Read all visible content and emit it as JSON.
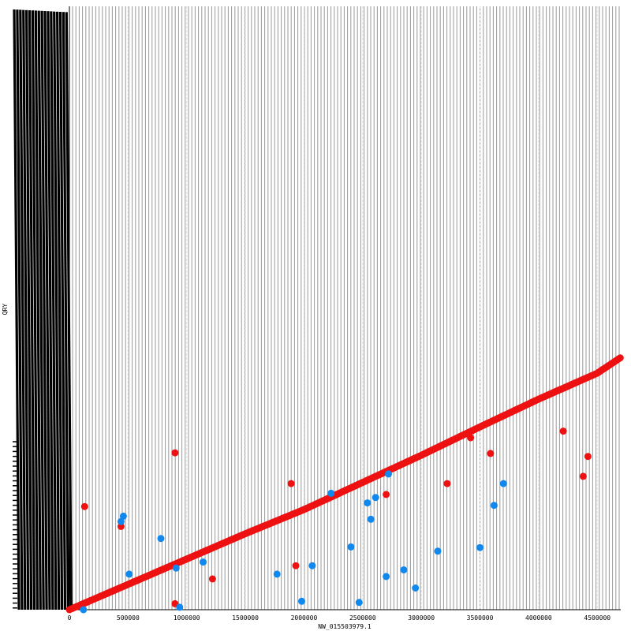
{
  "chart_data": {
    "type": "scatter",
    "xlabel": "NW_015503979.1",
    "ylabel": "QRY",
    "xlim": [
      0,
      4700000
    ],
    "ylim": [
      0,
      100
    ],
    "x_ticks": [
      0,
      500000,
      1000000,
      1500000,
      2000000,
      2500000,
      3000000,
      3500000,
      4000000,
      4500000
    ],
    "x_tick_labels": [
      "0",
      "500000",
      "1000000",
      "1500000",
      "2000000",
      "2500000",
      "3000000",
      "3500000",
      "4000000",
      "4500000"
    ],
    "grid": true,
    "colors": {
      "forward": "#ee1111",
      "reverse": "#1188ee",
      "grid": "#999999",
      "axis": "#000000"
    },
    "diagonal": {
      "color": "#ee1111",
      "x": [
        0,
        500000,
        1000000,
        1500000,
        2000000,
        2500000,
        3000000,
        3500000,
        4000000,
        4500000,
        4700000
      ],
      "y": [
        0,
        4.2,
        8.4,
        12.6,
        16.6,
        21.1,
        25.6,
        30.3,
        34.9,
        39.2,
        41.8
      ]
    },
    "series": [
      {
        "color": "#ee1111",
        "x": [
          130000,
          440000,
          900000,
          900000,
          1220000,
          1890000,
          1930000,
          2700000,
          3220000,
          3420000,
          3590000,
          4210000,
          4380000,
          4420000
        ],
        "y": [
          17.1,
          13.8,
          1.0,
          26.0,
          5.1,
          20.9,
          7.3,
          19.1,
          20.9,
          28.5,
          25.9,
          29.6,
          22.1,
          25.4
        ]
      },
      {
        "color": "#1188ee",
        "x": [
          120000,
          440000,
          460000,
          510000,
          780000,
          910000,
          940000,
          1140000,
          1770000,
          1980000,
          2070000,
          2230000,
          2400000,
          2470000,
          2540000,
          2570000,
          2610000,
          2700000,
          2720000,
          2850000,
          2950000,
          3140000,
          3500000,
          3620000,
          3700000
        ],
        "y": [
          0.0,
          14.6,
          15.5,
          5.9,
          11.8,
          6.9,
          0.4,
          7.9,
          5.9,
          1.4,
          7.3,
          19.3,
          10.4,
          1.2,
          17.7,
          15.0,
          18.6,
          5.5,
          22.5,
          6.6,
          3.6,
          9.7,
          10.3,
          17.3,
          20.9
        ]
      }
    ]
  }
}
